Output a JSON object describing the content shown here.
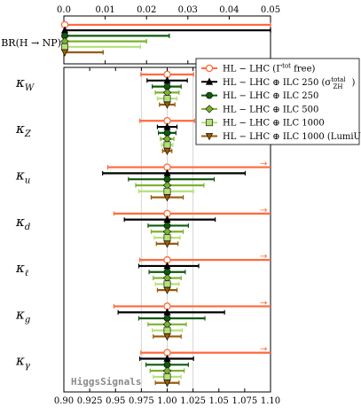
{
  "chart_data": {
    "type": "errorbar",
    "watermark": "HiggsSignals",
    "legend_position": "upper-right",
    "top_axis": {
      "label": "BR(H → NP)",
      "ticks": [
        "0.0",
        "0.01",
        "0.02",
        "0.03",
        "0.04",
        "0.05"
      ],
      "tick_values": [
        0.0,
        0.01,
        0.02,
        0.03,
        0.04,
        0.05
      ],
      "xlim": [
        0.0,
        0.05
      ]
    },
    "bottom_axis": {
      "ticks": [
        "0.90",
        "0.925",
        "0.95",
        "0.975",
        "1.00",
        "1.025",
        "1.05",
        "1.075",
        "1.10"
      ],
      "tick_values": [
        0.9,
        0.925,
        0.95,
        0.975,
        1.0,
        1.025,
        1.05,
        1.075,
        1.1
      ],
      "xlim": [
        0.9,
        1.1
      ],
      "gridlines": [
        0.975,
        1.0,
        1.025
      ]
    },
    "series": [
      {
        "name": "HL − LHC (Γ^tot free)",
        "legend_main": "HL − LHC (Γ",
        "legend_sup": "tot",
        "legend_tail": " free)",
        "color": "#ff6a3c",
        "marker": "circle"
      },
      {
        "name": "HL − LHC ⊕ ILC 250 (σ_ZH^total)",
        "legend_main": "HL − LHC ⊕ ILC 250 (σ",
        "legend_sup": "total",
        "legend_sub": "ZH",
        "legend_tail": ")",
        "color": "#000000",
        "marker": "triangle"
      },
      {
        "name": "HL − LHC ⊕ ILC 250",
        "legend_main": "HL − LHC ⊕ ILC 250",
        "color": "#0f5a0f",
        "marker": "circle"
      },
      {
        "name": "HL − LHC ⊕ ILC 500",
        "legend_main": "HL − LHC ⊕ ILC 500",
        "color": "#7ab32e",
        "marker": "diamond"
      },
      {
        "name": "HL − LHC ⊕ ILC 1000",
        "legend_main": "HL − LHC ⊕ ILC 1000",
        "color": "#b5e07a",
        "marker": "square"
      },
      {
        "name": "HL − LHC ⊕ ILC 1000 (LumiUp)",
        "legend_main": "HL − LHC ⊕ ILC 1000 (LumiUp)",
        "color": "#9a5a08",
        "marker": "triangle-down"
      }
    ],
    "br_np": {
      "upper_limits": [
        0.05,
        0.05,
        0.0255,
        0.02,
        0.0185,
        0.0095
      ]
    },
    "couplings": [
      {
        "label": "κ",
        "sub": "W",
        "intervals": [
          [
            0.9745,
            1.0255
          ],
          [
            0.9805,
            1.0195
          ],
          [
            0.9855,
            1.0135
          ],
          [
            0.9885,
            1.0115
          ],
          [
            0.9905,
            1.0095
          ],
          [
            0.9925,
            1.0075
          ]
        ]
      },
      {
        "label": "κ",
        "sub": "Z",
        "intervals": [
          [
            0.9735,
            1.0265
          ],
          [
            0.9905,
            1.0095
          ],
          [
            0.9915,
            1.0085
          ],
          [
            0.9935,
            1.0065
          ],
          [
            0.9945,
            1.0055
          ],
          [
            0.9955,
            1.0045
          ]
        ]
      },
      {
        "label": "κ",
        "sub": "u",
        "intervals": [
          [
            0.9425,
            1.1
          ],
          [
            0.9375,
            1.0755
          ],
          [
            0.9625,
            1.0455
          ],
          [
            0.9695,
            1.0355
          ],
          [
            0.9725,
            1.0255
          ],
          [
            0.9845,
            1.0155
          ]
        ],
        "open_upper": [
          true,
          false,
          false,
          false,
          false,
          false
        ]
      },
      {
        "label": "κ",
        "sub": "d",
        "intervals": [
          [
            0.9485,
            1.1
          ],
          [
            0.9585,
            1.0465
          ],
          [
            0.9815,
            1.0205
          ],
          [
            0.9845,
            1.0155
          ],
          [
            0.9875,
            1.0125
          ],
          [
            0.9895,
            1.0105
          ]
        ],
        "open_upper": [
          true,
          false,
          false,
          false,
          false,
          false
        ]
      },
      {
        "label": "κ",
        "sub": "ℓ",
        "intervals": [
          [
            0.9735,
            1.1
          ],
          [
            0.9725,
            1.0305
          ],
          [
            0.9825,
            1.0175
          ],
          [
            0.9865,
            1.0135
          ],
          [
            0.9885,
            1.0115
          ],
          [
            0.9905,
            1.0095
          ]
        ],
        "open_upper": [
          true,
          false,
          false,
          false,
          false,
          false
        ]
      },
      {
        "label": "κ",
        "sub": "g",
        "intervals": [
          [
            0.9485,
            1.1
          ],
          [
            0.9525,
            1.0555
          ],
          [
            0.9725,
            1.0365
          ],
          [
            0.9815,
            1.0185
          ],
          [
            0.9855,
            1.0145
          ],
          [
            0.9865,
            1.0135
          ]
        ],
        "open_upper": [
          true,
          false,
          false,
          false,
          false,
          false
        ]
      },
      {
        "label": "κ",
        "sub": "γ",
        "intervals": [
          [
            0.9745,
            1.1
          ],
          [
            0.9735,
            1.0255
          ],
          [
            0.9795,
            1.0205
          ],
          [
            0.9835,
            1.0165
          ],
          [
            0.9865,
            1.0135
          ],
          [
            0.9885,
            1.0115
          ]
        ],
        "open_upper": [
          true,
          false,
          false,
          false,
          false,
          false
        ]
      }
    ]
  }
}
